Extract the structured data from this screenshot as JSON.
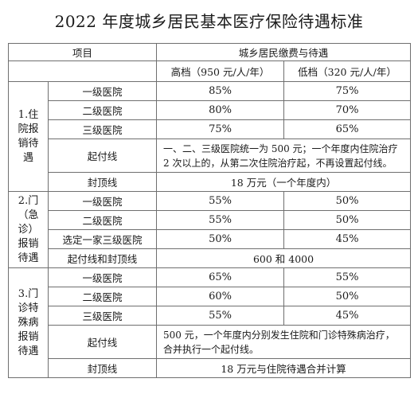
{
  "title": "2022 年度城乡居民基本医疗保险待遇标准",
  "header": {
    "item": "项目",
    "group": "城乡居民缴费与待遇",
    "high": "高档（950 元/人/年）",
    "low": "低档（320 元/人/年）"
  },
  "section1": {
    "label": "1.住院报销待遇",
    "rows": [
      {
        "name": "一级医院",
        "high": "85%",
        "low": "75%"
      },
      {
        "name": "二级医院",
        "high": "80%",
        "low": "70%"
      },
      {
        "name": "三级医院",
        "high": "75%",
        "low": "65%"
      }
    ],
    "deductible_label": "起付线",
    "deductible_text": "一、二、三级医院统一为 500 元；一个年度内住院治疗 2 次以上的，从第二次住院治疗起，不再设置起付线。",
    "cap_label": "封顶线",
    "cap_text": "18 万元（一个年度内）"
  },
  "section2": {
    "label": "2.门（急诊）报销待遇",
    "rows": [
      {
        "name": "一级医院",
        "high": "55%",
        "low": "50%"
      },
      {
        "name": "二级医院",
        "high": "55%",
        "low": "50%"
      },
      {
        "name": "选定一家三级医院",
        "high": "50%",
        "low": "45%"
      }
    ],
    "limit_label": "起付线和封顶线",
    "limit_text": "600 和 4000"
  },
  "section3": {
    "label": "3.门诊特殊病报销待遇",
    "rows": [
      {
        "name": "一级医院",
        "high": "65%",
        "low": "55%"
      },
      {
        "name": "二级医院",
        "high": "60%",
        "low": "50%"
      },
      {
        "name": "三级医院",
        "high": "55%",
        "low": "45%"
      }
    ],
    "deductible_label": "起付线",
    "deductible_text": "500 元，一个年度内分别发生住院和门诊特殊病治疗，合并执行一个起付线。",
    "cap_label": "封顶线",
    "cap_text": "18 万元与住院待遇合并计算"
  }
}
